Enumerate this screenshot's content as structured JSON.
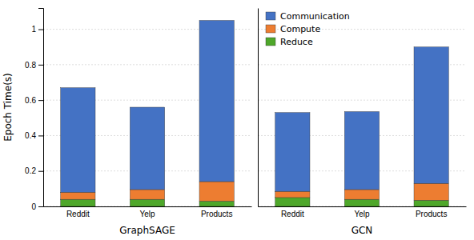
{
  "chart_data": [
    {
      "type": "bar",
      "stacked": true,
      "grid": true,
      "tick_labels": true,
      "xlabel": "GraphSAGE",
      "ylabel": "Epoch Time(s)",
      "categories": [
        "Reddit",
        "Yelp",
        "Products"
      ],
      "series": [
        {
          "color": "#4EA72A",
          "values": [
            0.04,
            0.04,
            0.03
          ]
        },
        {
          "color": "#ED7D31",
          "values": [
            0.04,
            0.055,
            0.11
          ]
        },
        {
          "color": "#4472C4",
          "values": [
            0.59,
            0.465,
            0.91
          ]
        }
      ],
      "ylim": [
        0,
        1.12
      ],
      "yticks": [
        0,
        0.2,
        0.4,
        0.6,
        0.8,
        1
      ]
    },
    {
      "type": "bar",
      "stacked": true,
      "grid": true,
      "tick_labels": "x",
      "legend": "upper left",
      "xlabel": "GCN",
      "categories": [
        "Reddit",
        "Yelp",
        "Products"
      ],
      "series": [
        {
          "name": "Reduce",
          "color": "#4EA72A",
          "values": [
            0.05,
            0.04,
            0.035
          ]
        },
        {
          "name": "Compute",
          "color": "#ED7D31",
          "values": [
            0.035,
            0.055,
            0.095
          ]
        },
        {
          "name": "Communication",
          "color": "#4472C4",
          "values": [
            0.445,
            0.44,
            0.77
          ]
        }
      ],
      "ylim": [
        0,
        1.12
      ],
      "yticks": [
        0,
        0.2,
        0.4,
        0.6,
        0.8,
        1
      ]
    }
  ]
}
